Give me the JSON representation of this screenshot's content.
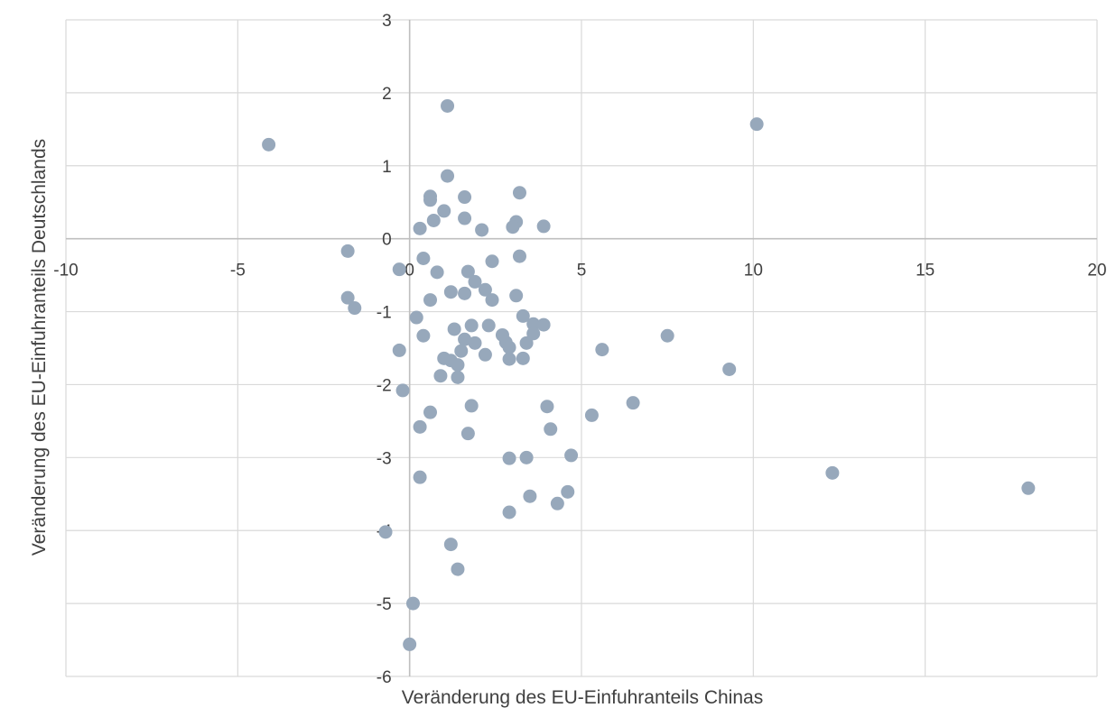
{
  "chart_data": {
    "type": "scatter",
    "title": "",
    "xlabel": "Veränderung des EU-Einfuhranteils Chinas",
    "ylabel": "Veränderung des EU-Einfuhranteils Deutschlands",
    "xlim": [
      -10,
      20
    ],
    "ylim": [
      -6,
      3
    ],
    "xticks": [
      "-10",
      "-5",
      "0",
      "5",
      "10",
      "15",
      "20"
    ],
    "yticks": [
      "3",
      "2",
      "1",
      "0",
      "-1",
      "-2",
      "-3",
      "-4",
      "-5",
      "-6"
    ],
    "grid": true,
    "legend": "none",
    "marker_color": "#97a8bb",
    "grid_color": "#d9d9d9",
    "axis_color": "#bfbfbf",
    "series": [
      {
        "points": [
          [
            -4.1,
            1.29
          ],
          [
            10.1,
            1.57
          ],
          [
            1.1,
            1.82
          ],
          [
            1.1,
            0.86
          ],
          [
            0.6,
            0.58
          ],
          [
            0.6,
            0.53
          ],
          [
            1.6,
            0.57
          ],
          [
            3.2,
            0.63
          ],
          [
            0.3,
            0.14
          ],
          [
            0.7,
            0.25
          ],
          [
            1.0,
            0.38
          ],
          [
            1.6,
            0.28
          ],
          [
            2.1,
            0.12
          ],
          [
            3.1,
            0.23
          ],
          [
            3.0,
            0.16
          ],
          [
            3.9,
            0.17
          ],
          [
            -1.8,
            -0.17
          ],
          [
            0.4,
            -0.27
          ],
          [
            2.4,
            -0.31
          ],
          [
            3.2,
            -0.24
          ],
          [
            -0.3,
            -0.42
          ],
          [
            0.8,
            -0.46
          ],
          [
            1.7,
            -0.45
          ],
          [
            1.9,
            -0.59
          ],
          [
            2.2,
            -0.7
          ],
          [
            1.2,
            -0.73
          ],
          [
            1.6,
            -0.75
          ],
          [
            3.1,
            -0.78
          ],
          [
            -1.8,
            -0.81
          ],
          [
            0.6,
            -0.84
          ],
          [
            2.4,
            -0.84
          ],
          [
            -1.6,
            -0.95
          ],
          [
            0.2,
            -1.08
          ],
          [
            3.3,
            -1.06
          ],
          [
            1.3,
            -1.24
          ],
          [
            1.8,
            -1.19
          ],
          [
            2.3,
            -1.19
          ],
          [
            3.6,
            -1.17
          ],
          [
            3.9,
            -1.18
          ],
          [
            0.4,
            -1.33
          ],
          [
            1.6,
            -1.38
          ],
          [
            2.7,
            -1.32
          ],
          [
            3.6,
            -1.3
          ],
          [
            1.9,
            -1.43
          ],
          [
            2.8,
            -1.42
          ],
          [
            3.4,
            -1.43
          ],
          [
            7.5,
            -1.33
          ],
          [
            5.6,
            -1.52
          ],
          [
            -0.3,
            -1.53
          ],
          [
            1.5,
            -1.54
          ],
          [
            2.9,
            -1.49
          ],
          [
            1.0,
            -1.64
          ],
          [
            1.2,
            -1.67
          ],
          [
            2.2,
            -1.59
          ],
          [
            2.9,
            -1.65
          ],
          [
            3.3,
            -1.64
          ],
          [
            1.4,
            -1.73
          ],
          [
            0.9,
            -1.88
          ],
          [
            1.4,
            -1.9
          ],
          [
            9.3,
            -1.79
          ],
          [
            -0.2,
            -2.08
          ],
          [
            1.8,
            -2.29
          ],
          [
            4.0,
            -2.3
          ],
          [
            6.5,
            -2.25
          ],
          [
            0.6,
            -2.38
          ],
          [
            5.3,
            -2.42
          ],
          [
            0.3,
            -2.58
          ],
          [
            4.1,
            -2.61
          ],
          [
            1.7,
            -2.67
          ],
          [
            2.9,
            -3.01
          ],
          [
            3.4,
            -3.0
          ],
          [
            4.7,
            -2.97
          ],
          [
            0.3,
            -3.27
          ],
          [
            12.3,
            -3.21
          ],
          [
            18.0,
            -3.42
          ],
          [
            4.6,
            -3.47
          ],
          [
            3.5,
            -3.53
          ],
          [
            4.3,
            -3.63
          ],
          [
            2.9,
            -3.75
          ],
          [
            -0.7,
            -4.02
          ],
          [
            1.2,
            -4.19
          ],
          [
            1.4,
            -4.53
          ],
          [
            0.1,
            -5.0
          ],
          [
            0.0,
            -5.56
          ]
        ]
      }
    ]
  }
}
